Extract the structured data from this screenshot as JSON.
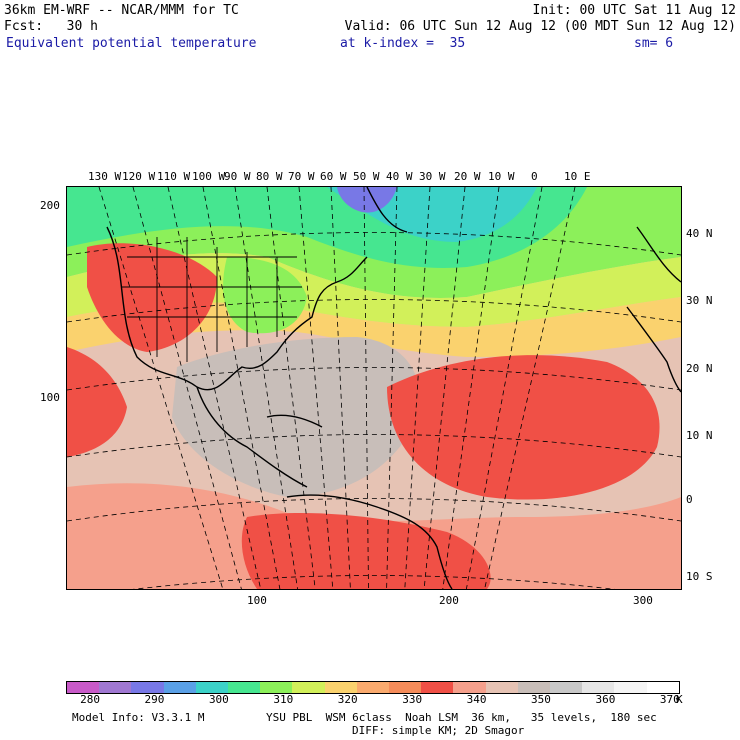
{
  "header": {
    "model": "36km EM-WRF -- NCAR/MMM for TC",
    "init": "Init: 00 UTC Sat 11 Aug 12",
    "fcst": "Fcst:   30 h",
    "valid": "Valid: 06 UTC Sun 12 Aug 12 (00 MDT Sun 12 Aug 12)",
    "field": "Equivalent potential temperature",
    "level": "at k-index =  35",
    "smooth": "sm= 6"
  },
  "map": {
    "longitude_labels": [
      "130 W",
      "120 W",
      "110 W",
      "100 W",
      "90 W",
      "80 W",
      "70 W",
      "60 W",
      "50 W",
      "40 W",
      "30 W",
      "20 W",
      "10 W",
      "0",
      "10 E"
    ],
    "latitude_labels": [
      "40 N",
      "30 N",
      "20 N",
      "10 N",
      "0",
      "10 S"
    ],
    "grid_y_labels": [
      "200",
      "100"
    ],
    "grid_x_labels": [
      "100",
      "200",
      "300"
    ]
  },
  "colorbar": {
    "tick_labels": [
      "280",
      "290",
      "300",
      "310",
      "320",
      "330",
      "340",
      "350",
      "360",
      "370"
    ],
    "unit": "K",
    "colors": [
      "#c85ac8",
      "#a078d2",
      "#7878e6",
      "#5aa0e6",
      "#3cd2c8",
      "#46e690",
      "#8cf05a",
      "#d2f05a",
      "#fad26e",
      "#faaa6e",
      "#f58c5a",
      "#f05046",
      "#f5a08c",
      "#e6c3b4",
      "#c8beb9",
      "#c8c8c8",
      "#e6e6e6",
      "#f5f5f5",
      "#ffffff"
    ]
  },
  "footer": {
    "model_info": "Model Info: V3.3.1 M",
    "physics": "YSU PBL  WSM 6class  Noah LSM  36 km,   35 levels,  180 sec",
    "diffusion": "DIFF: simple KM; 2D Smagor"
  }
}
